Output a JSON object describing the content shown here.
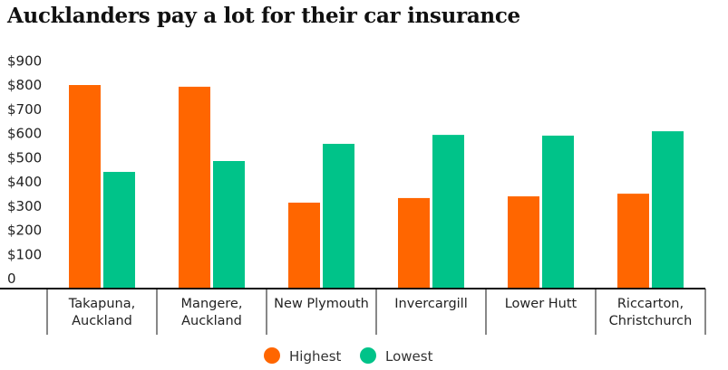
{
  "chart_data": {
    "type": "bar",
    "title": "Aucklanders pay a lot for their car insurance",
    "xlabel": "",
    "ylabel": "",
    "ylim": [
      0,
      900
    ],
    "yticks": [
      "0",
      "$100",
      "$200",
      "$300",
      "$400",
      "$500",
      "$600",
      "$700",
      "$800",
      "$900"
    ],
    "categories": [
      [
        "Takapuna,",
        "Auckland"
      ],
      [
        "Mangere,",
        "Auckland"
      ],
      [
        "New Plymouth"
      ],
      [
        "Invercargill"
      ],
      [
        "Lower Hutt"
      ],
      [
        "Riccarton,",
        "Christchurch"
      ]
    ],
    "series": [
      {
        "name": "Highest",
        "color": "#FF6600",
        "values": [
          800,
          793,
          314,
          333,
          340,
          351
        ]
      },
      {
        "name": "Lowest",
        "color": "#00C389",
        "values": [
          441,
          486,
          557,
          594,
          591,
          609
        ]
      }
    ],
    "legend": "bottom",
    "grid": false
  }
}
